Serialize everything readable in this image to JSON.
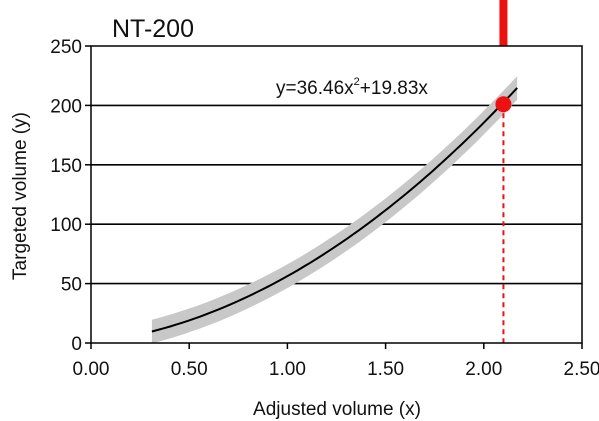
{
  "chart_data": {
    "type": "line",
    "title": "NT-200",
    "xlabel": "Adjusted volume (x)",
    "ylabel": "Targeted volume (y)",
    "xlim": [
      0,
      2.5
    ],
    "ylim": [
      0,
      250
    ],
    "x_ticks": [
      "0.00",
      "0.50",
      "1.00",
      "1.50",
      "2.00",
      "2.50"
    ],
    "y_ticks": [
      "0",
      "50",
      "100",
      "150",
      "200",
      "250"
    ],
    "horizontal_gridlines": true,
    "equation": {
      "prefix": "y=36.46x",
      "exponent": "2",
      "suffix": "+19.83x",
      "a": 36.46,
      "b": 19.83
    },
    "fit_x_range": [
      0.31,
      2.17
    ],
    "band_halfwidth": 10,
    "highlight_point": {
      "x": 2.1,
      "y": 201
    },
    "colors": {
      "fit_line": "#000000",
      "band": "#c8c8c8",
      "highlight": "#ee1111",
      "grid": "#000000"
    }
  }
}
